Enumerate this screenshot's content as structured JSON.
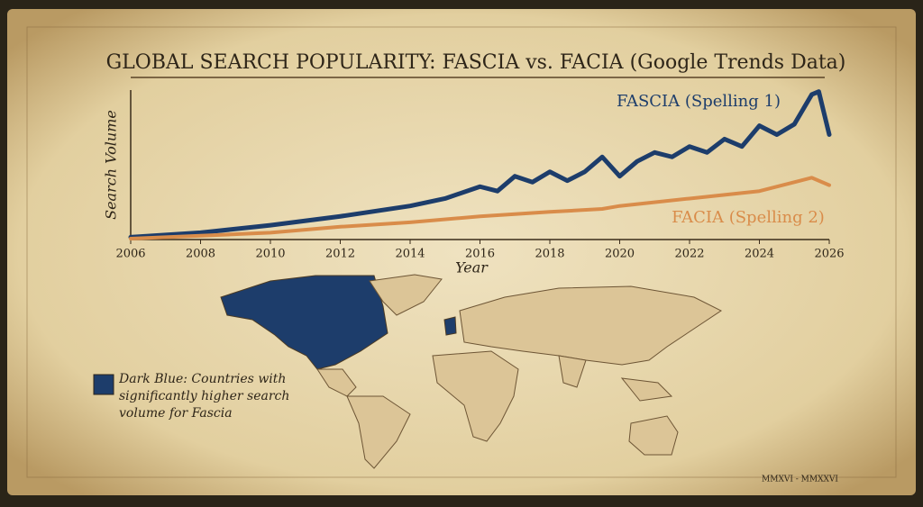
{
  "chart_data": {
    "type": "line",
    "title": "GLOBAL SEARCH POPULARITY: FASCIA vs. FACIA (Google Trends Data)",
    "x_label": "Year",
    "y_label": "Search Volume",
    "xlim": [
      2006,
      2026
    ],
    "xticks": [
      2006,
      2008,
      2010,
      2012,
      2014,
      2016,
      2018,
      2020,
      2022,
      2024,
      2026
    ],
    "ylim": [
      0,
      100
    ],
    "series": [
      {
        "name": "FASCIA (Spelling 1)",
        "color": "#1d3d6b",
        "x": [
          2006,
          2008,
          2010,
          2012,
          2014,
          2015,
          2016,
          2016.5,
          2017,
          2017.5,
          2018,
          2018.5,
          2019,
          2019.5,
          2020,
          2020.5,
          2021,
          2021.5,
          2022,
          2022.5,
          2023,
          2023.5,
          2024,
          2024.5,
          2025,
          2025.5,
          2025.7,
          2026
        ],
        "values": [
          1,
          4,
          9,
          15,
          22,
          27,
          35,
          32,
          42,
          38,
          45,
          39,
          45,
          55,
          42,
          52,
          58,
          55,
          62,
          58,
          67,
          62,
          76,
          70,
          77,
          97,
          99,
          70
        ]
      },
      {
        "name": "FACIA (Spelling 2)",
        "color": "#d98c4a",
        "x": [
          2006,
          2008,
          2010,
          2012,
          2014,
          2016,
          2018,
          2019.5,
          2020,
          2022,
          2024,
          2025.5,
          2026
        ],
        "values": [
          0,
          2,
          4,
          8,
          11,
          15,
          18,
          20,
          22,
          27,
          32,
          41,
          36
        ]
      }
    ],
    "map_legend": "Dark Blue: Countries with significantly higher search volume for Fascia",
    "footer": "MMXVI - MMXXVI"
  }
}
